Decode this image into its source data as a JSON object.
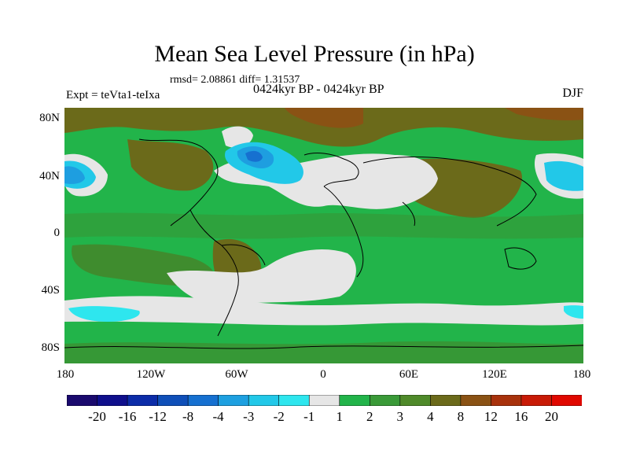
{
  "header": {
    "title": "Mean Sea Level Pressure (in hPa)",
    "stats": "rmsd= 2.08861 diff= 1.31537",
    "period": "0424kyr BP - 0424kyr BP",
    "experiment": "Expt = teVta1-teIxa",
    "season": "DJF"
  },
  "axes": {
    "y_labels": [
      "80N",
      "40N",
      "0",
      "40S",
      "80S"
    ],
    "x_labels": [
      "180",
      "120W",
      "60W",
      "0",
      "60E",
      "120E",
      "180"
    ]
  },
  "colorbar": {
    "labels": [
      "-20",
      "-16",
      "-12",
      "-8",
      "-4",
      "-3",
      "-2",
      "-1",
      "1",
      "2",
      "3",
      "4",
      "8",
      "12",
      "16",
      "20"
    ],
    "colors": [
      "#1a0a6e",
      "#0f0f8c",
      "#0c2ca8",
      "#0f4fb8",
      "#1670d0",
      "#1ea0e0",
      "#22c8e8",
      "#2ee6ee",
      "#e6e6e6",
      "#22b44a",
      "#3a9a38",
      "#4f8a2a",
      "#6b6a1a",
      "#8a5214",
      "#a8320c",
      "#c81a06",
      "#e00800"
    ]
  },
  "map_colors": {
    "neutral": "#e6e6e6",
    "green": "#22b44a",
    "darkgreen": "#3f8c2e",
    "olive": "#6b6a1a",
    "brown": "#8a5214",
    "lightblue": "#2ee6ee",
    "cyan": "#22c8e8",
    "midblue": "#1e9ee0",
    "blue": "#1670d0",
    "coast": "#000000"
  }
}
